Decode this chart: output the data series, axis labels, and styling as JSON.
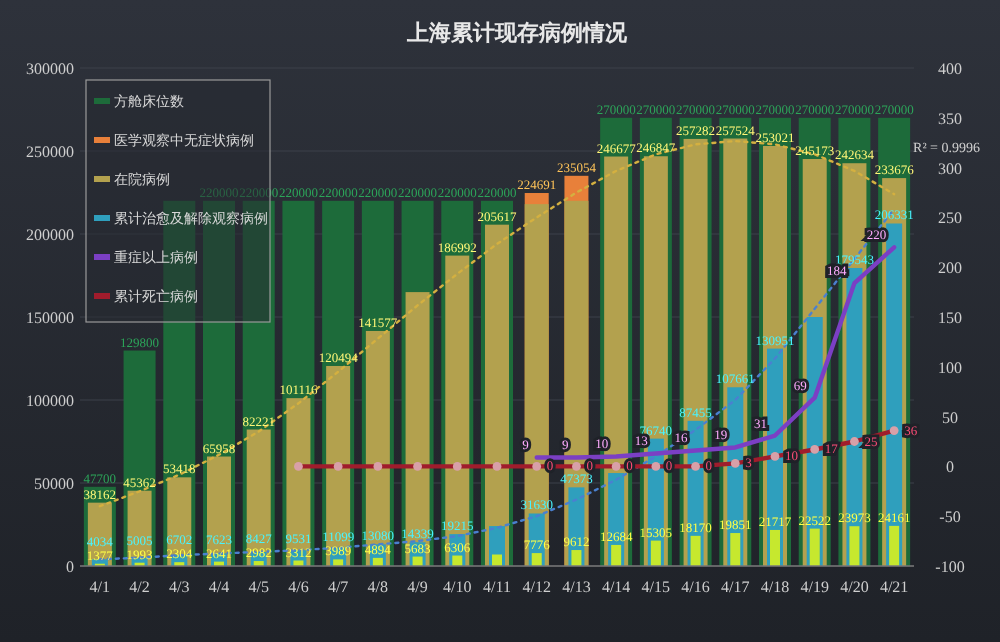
{
  "chart_data": {
    "type": "bar",
    "title": "上海累计现存病例情况",
    "categories": [
      "4/1",
      "4/2",
      "4/3",
      "4/4",
      "4/5",
      "4/6",
      "4/7",
      "4/8",
      "4/9",
      "4/10",
      "4/11",
      "4/12",
      "4/13",
      "4/14",
      "4/15",
      "4/16",
      "4/17",
      "4/18",
      "4/19",
      "4/20",
      "4/21"
    ],
    "series": [
      {
        "name": "方舱床位数",
        "color": "#1d6b3a",
        "values": [
          47700,
          129800,
          220000,
          220000,
          220000,
          220000,
          220000,
          220000,
          220000,
          220000,
          220000,
          null,
          null,
          270000,
          270000,
          270000,
          270000,
          270000,
          270000,
          270000,
          270000
        ],
        "value_labels": [
          "47700",
          "129800",
          null,
          "220000",
          "220000",
          "220000",
          "220000",
          "220000",
          "220000",
          "220000",
          "220000",
          null,
          null,
          "270000",
          "270000",
          "270000",
          "270000",
          "270000",
          "270000",
          "270000",
          "270000"
        ]
      },
      {
        "name": "医学观察中无症状病例",
        "color": "#e8803a",
        "values": [
          null,
          null,
          null,
          null,
          null,
          null,
          null,
          null,
          null,
          null,
          null,
          224691,
          235054,
          null,
          null,
          null,
          null,
          null,
          null,
          null,
          null
        ],
        "value_labels": [
          null,
          null,
          null,
          null,
          null,
          null,
          null,
          null,
          null,
          null,
          null,
          "224691",
          "235054",
          null,
          null,
          null,
          null,
          null,
          null,
          null,
          null
        ]
      },
      {
        "name": "在院病例",
        "color": "#b3a14e",
        "values": [
          38162,
          45362,
          53418,
          65958,
          82221,
          101116,
          120494,
          141577,
          165000,
          186992,
          205617,
          218000,
          220000,
          246677,
          246847,
          257282,
          257524,
          253021,
          245173,
          242634,
          233676
        ],
        "value_labels": [
          "38162",
          "45362",
          "53418",
          "65958",
          "82221",
          "101116",
          "120494",
          "141577",
          null,
          "186992",
          "205617",
          null,
          null,
          "246677",
          "246847",
          "257282",
          "257524",
          "253021",
          "245173",
          "242634",
          "233676"
        ]
      },
      {
        "name": "累计治愈及解除观察病例",
        "color": "#2f9fbd",
        "values": [
          4034,
          5005,
          6702,
          7623,
          8427,
          9531,
          11099,
          13080,
          14339,
          19215,
          24061,
          31630,
          47373,
          56000,
          76740,
          87455,
          107661,
          130951,
          150000,
          179543,
          206331
        ],
        "value_labels": [
          "4034",
          "5005",
          "6702",
          "7623",
          "8427",
          "9531",
          "11099",
          "13080",
          "14339",
          "19215",
          null,
          "31630",
          "47373",
          null,
          "76740",
          "87455",
          "107661",
          "130951",
          null,
          "179543",
          "206331"
        ]
      },
      {
        "color": "#c6e82e",
        "values": [
          1377,
          1993,
          2304,
          2641,
          2982,
          3312,
          3989,
          4894,
          5683,
          6306,
          6921,
          7776,
          9612,
          12684,
          15305,
          18170,
          19851,
          21717,
          22522,
          23973,
          24161
        ],
        "value_labels": [
          "1377",
          "1993",
          "2304",
          "2641",
          "2982",
          "3312",
          "3989",
          "4894",
          "5683",
          "6306",
          null,
          "7776",
          "9612",
          "12684",
          "15305",
          "18170",
          "19851",
          "21717",
          "22522",
          "23973",
          "24161"
        ]
      },
      {
        "type": "line",
        "line_style": "dotted",
        "color": "#d4b040",
        "values": [
          36000,
          45000,
          55000,
          67000,
          81000,
          98000,
          117000,
          137000,
          157000,
          176000,
          194000,
          210000,
          225000,
          238000,
          248000,
          254000,
          256000,
          254000,
          248000,
          238000,
          224000
        ]
      },
      {
        "type": "line",
        "line_style": "dotted",
        "color": "#4a80d0",
        "values": [
          4000,
          5000,
          6500,
          7500,
          8500,
          9500,
          11000,
          13000,
          15000,
          18000,
          23000,
          30000,
          40000,
          52000,
          66000,
          82000,
          100000,
          125000,
          155000,
          185000,
          215000
        ]
      },
      {
        "name": "重症以上病例",
        "type": "line",
        "axis": "y2",
        "color": "#7b3fc4",
        "values": [
          null,
          null,
          null,
          null,
          null,
          null,
          null,
          null,
          null,
          null,
          null,
          9,
          9,
          10,
          13,
          16,
          19,
          31,
          69,
          184,
          220
        ],
        "value_labels": [
          null,
          null,
          null,
          null,
          null,
          null,
          null,
          null,
          null,
          null,
          null,
          "9",
          "9",
          "10",
          "13",
          "16",
          "19",
          "31",
          "69",
          "184",
          "220"
        ]
      },
      {
        "name": "累计死亡病例",
        "type": "line",
        "axis": "y2",
        "color": "#a01c2c",
        "marker": "circle",
        "values": [
          null,
          null,
          null,
          null,
          null,
          0,
          0,
          0,
          0,
          0,
          0,
          0,
          0,
          0,
          0,
          0,
          3,
          10,
          17,
          25,
          36
        ],
        "value_labels": [
          null,
          null,
          null,
          null,
          null,
          null,
          null,
          null,
          null,
          null,
          null,
          "0",
          "0",
          "0",
          "0",
          "0",
          "3",
          "10",
          "17",
          "25",
          "36"
        ]
      }
    ],
    "ylim": [
      0,
      300000
    ],
    "yticks": [
      0,
      50000,
      100000,
      150000,
      200000,
      250000,
      300000
    ],
    "y2lim": [
      -100,
      400
    ],
    "y2ticks": [
      -100,
      -50,
      0,
      50,
      100,
      150,
      200,
      250,
      300,
      350,
      400
    ],
    "grid": "y",
    "legend": "top left",
    "annotations": [
      "R² = 0.9996"
    ]
  }
}
